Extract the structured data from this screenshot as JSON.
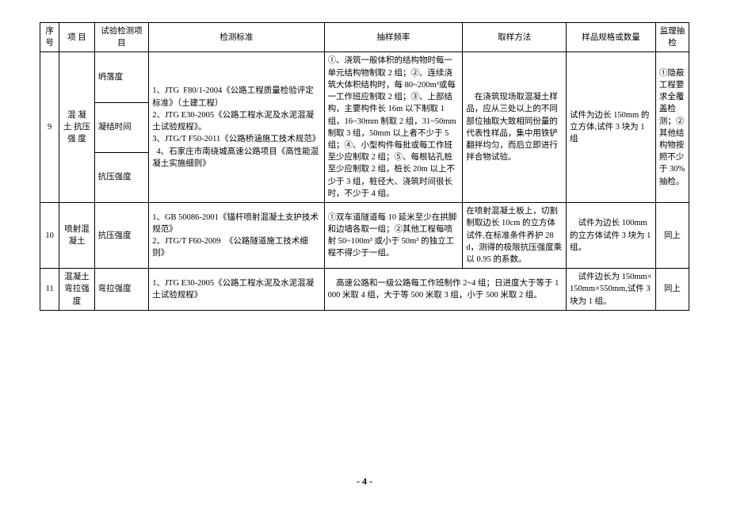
{
  "table": {
    "headers": {
      "seq": "序号",
      "item": "项  目",
      "test": "试验检测项目",
      "std": "检测标准",
      "freq": "抽样频率",
      "method": "取样方法",
      "spec": "样品规格或数量",
      "sup": "监理抽检"
    },
    "row9": {
      "seq": "9",
      "item": "混 凝 土 抗压强 度",
      "tests": {
        "a": "坍落度",
        "b": "凝结时间",
        "c": "抗压强度"
      },
      "std": "1、JTG  F80/1-2004《公路工程质量检验评定标准》（土建工程）\n2、JTG E30-2005《公路工程水泥及水泥混凝土试验规程》。\n3、JTG/T F50-2011《公路桥涵施工技术规范》\n  4、石家庄市南绕城高速公路项目《高性能混凝土实施细则》",
      "freq": "①、浇筑一般体积的结构物时每一单元结构物制取 2 组；②、连续浇筑大体积结构时，每 80~200m³或每一工作班应制取 2 组；③、上部结构，主要构件长 16m 以下制取 1 组，16~30mm 制取 2 组，31~50mm 制取 3 组，50mm 以上者不少于 5 组；④、小型构件每批或每工作班至少应制取 2 组；⑤、每根钻孔桩至少应制取 2 组，桩长 20m 以上不少于 3 组，桩径大、浇筑时间很长时，不少于 4 组。",
      "method": "    在浇筑现场取混凝土样品，应从三处以上的不同部位抽取大致相同份量的代表性样品，集中用铁铲翻拌均匀，而后立即进行拌合物试验。",
      "spec": "试件为边长 150mm 的立方体,试件 3 块为 1 组",
      "sup": "①隐蔽工程要求全覆盖检测；②其他结构物按照不少于 30%抽检。"
    },
    "row10": {
      "seq": "10",
      "item": "喷射混凝土",
      "test": "抗压强度",
      "std": "1、GB 50086-2001《锚杆喷射混凝土支护技术规范》\n2、JTG/T F60-2009  《公路隧道施工技术细则》",
      "freq": "①双车道隧道每 10 延米至少在拱脚和边墙各取一组；②其他工程每喷射 50~100m³ 或小于 50m³ 的独立工程不得少于一组。",
      "method": "在喷射混凝土板上，切割制取边长 10cm 的立方体试件,在标准条件养护 28d，测得的极限抗压强度乘以 0.95 的系数。",
      "spec": "    试件为边长 100mm的立方体试件 3 块为 1 组。",
      "sup": "同上"
    },
    "row11": {
      "seq": "11",
      "item": "混凝土弯拉强度",
      "test": "弯拉强度",
      "std": "1、JTG E30-2005《公路工程水泥及水泥混凝土试验规程》",
      "freq_method": "    高速公路和一级公路每工作班制作 2~4 组；日进度大于等于 1000 米取 4 组，大于等 500 米取 3 组，小于 500 米取 2 组。",
      "spec": "    试件边长为 150mm×150mm×550mm,试件 3 块为 1 组。",
      "sup": "同上"
    }
  },
  "footer": "- 4 -"
}
